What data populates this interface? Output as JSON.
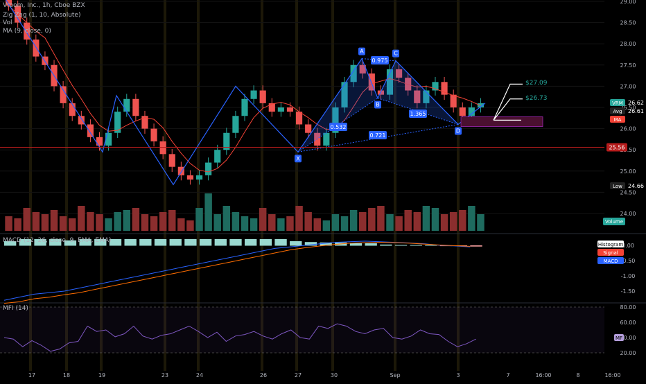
{
  "header": {
    "symbol_line": "Vroom, Inc., 1h, Cboe BZX",
    "zigzag_line": "Zig Zag (1, 10, Absolute)",
    "vol_line": "Vol",
    "ma_line": "MA (9, close, 0)"
  },
  "colors": {
    "up": "#26a69a",
    "down": "#ef5350",
    "vol_up": "#1e6b5f",
    "vol_down": "#8b2e2e",
    "ma": "#f44336",
    "pattern": "#2962ff",
    "pattern_fill": "rgba(41,98,255,0.22)",
    "macd": "#2962ff",
    "signal": "#ff6d00",
    "mfi": "#7e57c2",
    "support": "#b71c1c",
    "zone": "#4a1030"
  },
  "price_axis": {
    "ticks": [
      "29.00",
      "28.50",
      "28.00",
      "27.50",
      "27.00",
      "26.50",
      "26.00",
      "25.50",
      "25.00",
      "24.50",
      "24.00"
    ]
  },
  "price_tags": {
    "vrm": {
      "label": "VRM",
      "value": "26.62"
    },
    "avg": {
      "label": "Avg",
      "value": "26.61"
    },
    "ma": {
      "label": "MA"
    },
    "support": {
      "value": "25.56"
    },
    "low": {
      "label": "Low",
      "value": "24.66"
    },
    "volume": {
      "label": "Volume"
    }
  },
  "targets": {
    "t1": "$27.09",
    "t2": "$26.73"
  },
  "pattern_points": {
    "X": {
      "label": "X",
      "value": 25.45
    },
    "A": {
      "label": "A",
      "value": 27.65
    },
    "B": {
      "label": "B",
      "value": 26.72
    },
    "C": {
      "label": "C",
      "value": 27.6
    },
    "D": {
      "label": "D",
      "value": 26.1
    }
  },
  "pattern_ratios": {
    "xb": "0.532",
    "ac": "0.975",
    "bd": "1.365",
    "xd": "0.721"
  },
  "macd_panel": {
    "legend": "MACD (12, 26, close, 9, EMA, EMA)",
    "ticks": [
      "0.00",
      "-0.50",
      "-1.00",
      "-1.50"
    ],
    "tags": {
      "histogram": "Histogram",
      "signal": "Signal",
      "macd": "MACD"
    }
  },
  "mfi_panel": {
    "legend": "MFI (14)",
    "ticks": [
      "80.00",
      "60.00",
      "40.00",
      "20.00"
    ],
    "tag": "MF"
  },
  "time_axis": {
    "labels": [
      "17",
      "18",
      "19",
      "23",
      "24",
      "26",
      "27",
      "30",
      "Sep",
      "3",
      "7",
      "16:00",
      "8",
      "16:00"
    ]
  },
  "chart_data": {
    "type": "candlestick",
    "title": "Vroom, Inc., 1h, Cboe BZX",
    "ylim": [
      23.6,
      29.1
    ],
    "support_level": 25.56,
    "last_price": 26.62,
    "avg_price": 26.61,
    "low_price": 24.66,
    "zigzag_path": [
      29.1,
      25.45,
      26.78,
      24.68,
      27.0,
      25.45,
      27.65,
      26.72,
      27.6,
      26.1,
      26.6
    ],
    "close_series": [
      28.9,
      28.5,
      28.1,
      27.7,
      27.5,
      27.0,
      26.6,
      26.3,
      26.1,
      25.8,
      25.6,
      25.9,
      26.4,
      26.7,
      26.3,
      26.0,
      25.7,
      25.4,
      25.1,
      24.9,
      24.8,
      24.9,
      25.2,
      25.5,
      25.9,
      26.3,
      26.7,
      26.9,
      26.6,
      26.4,
      26.5,
      26.4,
      26.1,
      25.9,
      25.6,
      25.9,
      26.5,
      27.1,
      27.5,
      27.3,
      26.9,
      26.8,
      27.4,
      27.2,
      26.9,
      26.6,
      26.9,
      27.1,
      26.8,
      26.5,
      26.3,
      26.5,
      26.6
    ],
    "volume_series": [
      0.35,
      0.3,
      0.55,
      0.45,
      0.4,
      0.5,
      0.35,
      0.3,
      0.6,
      0.45,
      0.4,
      0.3,
      0.45,
      0.5,
      0.55,
      0.4,
      0.35,
      0.45,
      0.5,
      0.3,
      0.25,
      0.55,
      0.9,
      0.4,
      0.6,
      0.45,
      0.35,
      0.3,
      0.55,
      0.4,
      0.3,
      0.35,
      0.6,
      0.45,
      0.3,
      0.25,
      0.4,
      0.35,
      0.5,
      0.45,
      0.55,
      0.6,
      0.4,
      0.35,
      0.5,
      0.45,
      0.6,
      0.55,
      0.4,
      0.45,
      0.5,
      0.6,
      0.4
    ],
    "macd_series": [
      -1.8,
      -1.7,
      -1.6,
      -1.55,
      -1.5,
      -1.4,
      -1.3,
      -1.2,
      -1.1,
      -1.0,
      -0.9,
      -0.8,
      -0.7,
      -0.6,
      -0.5,
      -0.4,
      -0.3,
      -0.2,
      -0.1,
      -0.05,
      0.0,
      0.05,
      0.1,
      0.12,
      0.14,
      0.12,
      0.1,
      0.08,
      0.05,
      0.0,
      -0.02,
      -0.05
    ],
    "signal_series": [
      -1.9,
      -1.85,
      -1.75,
      -1.7,
      -1.62,
      -1.55,
      -1.45,
      -1.35,
      -1.25,
      -1.15,
      -1.05,
      -0.95,
      -0.85,
      -0.75,
      -0.65,
      -0.55,
      -0.45,
      -0.35,
      -0.25,
      -0.15,
      -0.08,
      -0.02,
      0.03,
      0.07,
      0.09,
      0.1,
      0.09,
      0.07,
      0.04,
      0.01,
      -0.01,
      -0.03
    ],
    "mfi_series": [
      40,
      38,
      28,
      36,
      30,
      22,
      25,
      33,
      35,
      55,
      48,
      50,
      41,
      45,
      55,
      42,
      38,
      43,
      45,
      50,
      55,
      48,
      40,
      47,
      35,
      42,
      44,
      48,
      42,
      38,
      45,
      50,
      40,
      38,
      55,
      52,
      58,
      55,
      48,
      45,
      50,
      52,
      40,
      38,
      42,
      50,
      45,
      44,
      35,
      28,
      32,
      38
    ]
  }
}
